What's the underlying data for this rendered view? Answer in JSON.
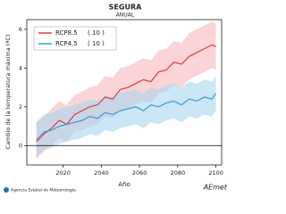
{
  "chart_data": {
    "type": "band-line",
    "title": "SEGURA",
    "subtitle": "ANUAL",
    "x_label": "Año",
    "y_label": "Cambio de la temperatura máxima (ºC)",
    "xlim": [
      2001,
      2103
    ],
    "ylim": [
      -1,
      6.5
    ],
    "xticks": [
      2020,
      2040,
      2060,
      2080,
      2100
    ],
    "yticks": [
      0,
      2,
      4,
      6
    ],
    "zero_line": true,
    "legend": "upper left",
    "x": [
      2006,
      2010,
      2014,
      2018,
      2022,
      2026,
      2030,
      2034,
      2038,
      2042,
      2046,
      2050,
      2054,
      2058,
      2062,
      2066,
      2070,
      2074,
      2078,
      2082,
      2086,
      2090,
      2094,
      2098,
      2100
    ],
    "series": [
      {
        "name": "RCP8.5",
        "legend_note": "( 10 )",
        "color": "#e03a3e",
        "band_color": "#f6b7bb",
        "values": [
          0.2,
          0.6,
          0.9,
          1.3,
          1.1,
          1.6,
          1.8,
          2.0,
          2.1,
          2.5,
          2.4,
          2.9,
          3.0,
          3.2,
          3.4,
          3.3,
          3.8,
          3.9,
          4.3,
          4.2,
          4.6,
          4.8,
          5.0,
          5.2,
          5.1
        ],
        "upper": [
          1.2,
          1.5,
          1.9,
          2.3,
          2.1,
          2.6,
          2.8,
          3.0,
          3.1,
          3.6,
          3.5,
          4.0,
          4.1,
          4.3,
          4.5,
          4.4,
          4.9,
          5.0,
          5.4,
          5.3,
          5.8,
          6.0,
          6.2,
          6.4,
          6.3
        ],
        "lower": [
          -0.7,
          -0.3,
          0.0,
          0.4,
          0.2,
          0.7,
          0.8,
          1.0,
          1.1,
          1.5,
          1.4,
          1.8,
          1.9,
          2.1,
          2.3,
          2.2,
          2.7,
          2.8,
          3.1,
          3.0,
          3.4,
          3.6,
          3.8,
          4.0,
          3.9
        ]
      },
      {
        "name": "RCP4.5",
        "legend_note": "( 10 )",
        "color": "#3b9ad8",
        "band_color": "#a9d5ef",
        "values": [
          0.3,
          0.7,
          0.8,
          1.0,
          1.1,
          1.2,
          1.3,
          1.5,
          1.4,
          1.7,
          1.6,
          1.8,
          1.9,
          2.0,
          1.8,
          2.1,
          2.0,
          2.2,
          2.3,
          2.1,
          2.4,
          2.3,
          2.5,
          2.4,
          2.7
        ],
        "upper": [
          1.2,
          1.6,
          1.7,
          1.9,
          2.0,
          2.1,
          2.2,
          2.4,
          2.3,
          2.6,
          2.5,
          2.7,
          2.8,
          2.9,
          2.7,
          3.0,
          2.9,
          3.1,
          3.2,
          3.0,
          3.3,
          3.2,
          3.4,
          3.3,
          3.6
        ],
        "lower": [
          -0.6,
          -0.2,
          -0.1,
          0.1,
          0.2,
          0.3,
          0.4,
          0.6,
          0.5,
          0.8,
          0.7,
          0.9,
          1.0,
          1.1,
          0.9,
          1.2,
          1.1,
          1.3,
          1.4,
          1.2,
          1.5,
          1.4,
          1.6,
          1.5,
          1.8
        ]
      }
    ]
  },
  "footer": {
    "agency": "Agencia Estatal de Meteorología",
    "logo": "AEmet"
  }
}
